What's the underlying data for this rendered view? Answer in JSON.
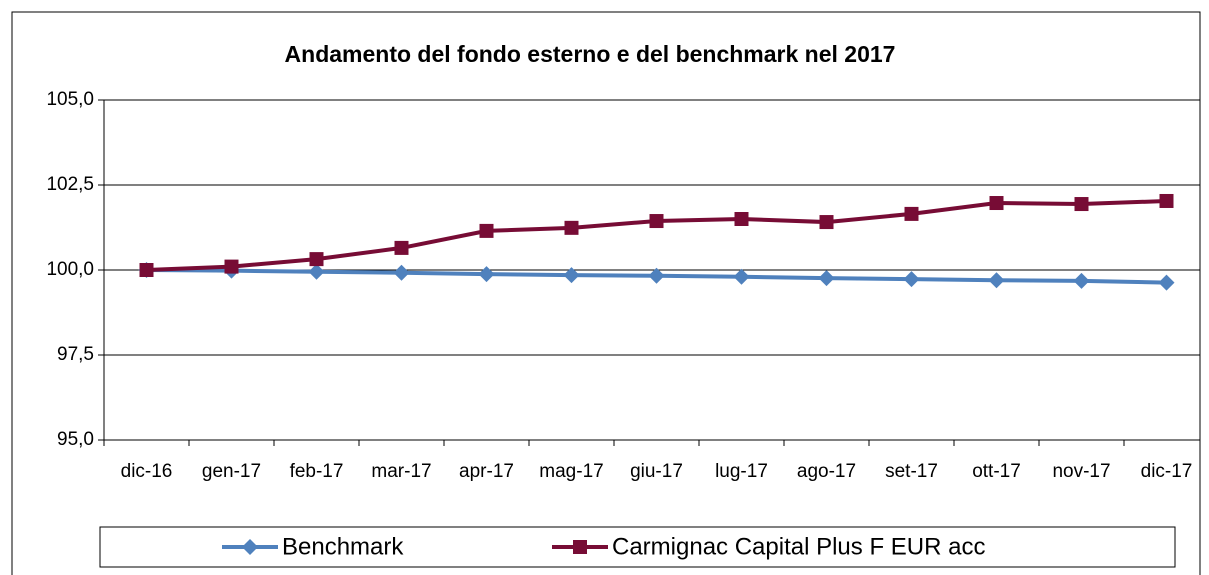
{
  "chart_data": {
    "type": "line",
    "title": "Andamento del fondo esterno e del benchmark nel 2017",
    "categories": [
      "dic-16",
      "gen-17",
      "feb-17",
      "mar-17",
      "apr-17",
      "mag-17",
      "giu-17",
      "lug-17",
      "ago-17",
      "set-17",
      "ott-17",
      "nov-17",
      "dic-17"
    ],
    "series": [
      {
        "name": "Benchmark",
        "color": "#4f81bd",
        "marker": "diamond",
        "values": [
          100,
          99.98,
          99.95,
          99.92,
          99.88,
          99.85,
          99.83,
          99.8,
          99.76,
          99.73,
          99.7,
          99.68,
          99.63
        ]
      },
      {
        "name": "Carmignac Capital Plus F EUR acc",
        "color": "#770c35",
        "marker": "square",
        "values": [
          100,
          100.1,
          100.32,
          100.65,
          101.15,
          101.24,
          101.44,
          101.5,
          101.41,
          101.65,
          101.97,
          101.94,
          102.03
        ]
      }
    ],
    "ylim": [
      95,
      105
    ],
    "yticks": [
      {
        "value": 95,
        "label": "95,0"
      },
      {
        "value": 97.5,
        "label": "97,5"
      },
      {
        "value": 100,
        "label": "100,0"
      },
      {
        "value": 102.5,
        "label": "102,5"
      },
      {
        "value": 105,
        "label": "105,0"
      }
    ],
    "grid": true,
    "legend": "bottom"
  }
}
